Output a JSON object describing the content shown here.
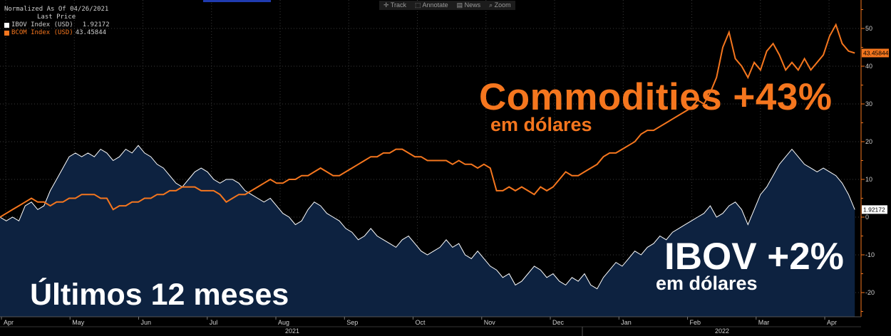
{
  "legend": {
    "header1": "Normalized As Of 04/26/2021",
    "header2": "Last Price",
    "items": [
      {
        "name": "IBOV Index (USD)",
        "value": "1.92172",
        "color": "#ffffff"
      },
      {
        "name": "BCOM Index (USD)",
        "value": "43.45844",
        "color": "#f5761e"
      }
    ]
  },
  "toolbar": {
    "track": "✛ Track",
    "annotate": "⬚ Annotate",
    "news": "▤ News",
    "zoom": "⌕ Zoom"
  },
  "overlay": {
    "commodities": "Commodities +43%",
    "commodities_sub": "em dólares",
    "ibov": "IBOV +2%",
    "ibov_sub": "em dólares",
    "period": "Últimos 12 meses"
  },
  "chart_data": {
    "type": "line",
    "title": "",
    "xlabel": "",
    "ylabel": "",
    "ylim": [
      -27,
      57
    ],
    "yticks": [
      -20,
      -10,
      0,
      10,
      20,
      30,
      40,
      50
    ],
    "grid": true,
    "month_labels": [
      "Apr",
      "May",
      "Jun",
      "Jul",
      "Aug",
      "Sep",
      "Oct",
      "Nov",
      "Dec",
      "Jan",
      "Feb",
      "Mar",
      "Apr"
    ],
    "year_labels": [
      "2021",
      "2022"
    ],
    "last_value_labels": [
      "43.45844",
      "1.92172"
    ],
    "series": [
      {
        "name": "BCOM Index (USD)",
        "color": "#f5761e",
        "style": "line",
        "points": [
          [
            0,
            0
          ],
          [
            4,
            1
          ],
          [
            8,
            2
          ],
          [
            12,
            3
          ],
          [
            16,
            4
          ],
          [
            20,
            5
          ],
          [
            24,
            4
          ],
          [
            28,
            4
          ],
          [
            32,
            3
          ],
          [
            36,
            4
          ],
          [
            40,
            4
          ],
          [
            44,
            5
          ],
          [
            48,
            5
          ],
          [
            52,
            6
          ],
          [
            56,
            6
          ],
          [
            60,
            6
          ],
          [
            64,
            5
          ],
          [
            68,
            5
          ],
          [
            72,
            2
          ],
          [
            76,
            3
          ],
          [
            80,
            3
          ],
          [
            84,
            4
          ],
          [
            88,
            4
          ],
          [
            92,
            5
          ],
          [
            96,
            5
          ],
          [
            100,
            6
          ],
          [
            104,
            6
          ],
          [
            108,
            7
          ],
          [
            112,
            7
          ],
          [
            116,
            8
          ],
          [
            120,
            8
          ],
          [
            124,
            8
          ],
          [
            128,
            7
          ],
          [
            132,
            7
          ],
          [
            136,
            7
          ],
          [
            140,
            6
          ],
          [
            144,
            4
          ],
          [
            148,
            5
          ],
          [
            152,
            6
          ],
          [
            156,
            6
          ],
          [
            160,
            7
          ],
          [
            164,
            8
          ],
          [
            168,
            9
          ],
          [
            172,
            10
          ],
          [
            176,
            9
          ],
          [
            180,
            9
          ],
          [
            184,
            10
          ],
          [
            188,
            10
          ],
          [
            192,
            11
          ],
          [
            196,
            11
          ],
          [
            200,
            12
          ],
          [
            204,
            13
          ],
          [
            208,
            12
          ],
          [
            212,
            11
          ],
          [
            216,
            11
          ],
          [
            220,
            12
          ],
          [
            224,
            13
          ],
          [
            228,
            14
          ],
          [
            232,
            15
          ],
          [
            236,
            16
          ],
          [
            240,
            16
          ],
          [
            244,
            17
          ],
          [
            248,
            17
          ],
          [
            252,
            18
          ],
          [
            256,
            18
          ],
          [
            260,
            17
          ],
          [
            264,
            16
          ],
          [
            268,
            16
          ],
          [
            272,
            15
          ],
          [
            276,
            15
          ],
          [
            280,
            15
          ],
          [
            284,
            15
          ],
          [
            288,
            14
          ],
          [
            292,
            15
          ],
          [
            296,
            14
          ],
          [
            300,
            14
          ],
          [
            304,
            13
          ],
          [
            308,
            14
          ],
          [
            312,
            13
          ],
          [
            316,
            7
          ],
          [
            320,
            7
          ],
          [
            324,
            8
          ],
          [
            328,
            7
          ],
          [
            332,
            8
          ],
          [
            336,
            7
          ],
          [
            340,
            6
          ],
          [
            344,
            8
          ],
          [
            348,
            7
          ],
          [
            352,
            8
          ],
          [
            356,
            10
          ],
          [
            360,
            12
          ],
          [
            364,
            11
          ],
          [
            368,
            11
          ],
          [
            372,
            12
          ],
          [
            376,
            13
          ],
          [
            380,
            14
          ],
          [
            384,
            16
          ],
          [
            388,
            17
          ],
          [
            392,
            17
          ],
          [
            396,
            18
          ],
          [
            400,
            19
          ],
          [
            404,
            20
          ],
          [
            408,
            22
          ],
          [
            412,
            23
          ],
          [
            416,
            23
          ],
          [
            420,
            24
          ],
          [
            424,
            25
          ],
          [
            428,
            26
          ],
          [
            432,
            27
          ],
          [
            436,
            28
          ],
          [
            440,
            29
          ],
          [
            444,
            31
          ],
          [
            448,
            30
          ],
          [
            452,
            33
          ],
          [
            456,
            37
          ],
          [
            460,
            45
          ],
          [
            464,
            49
          ],
          [
            468,
            42
          ],
          [
            472,
            40
          ],
          [
            476,
            37
          ],
          [
            480,
            41
          ],
          [
            484,
            39
          ],
          [
            488,
            44
          ],
          [
            492,
            46
          ],
          [
            496,
            43
          ],
          [
            500,
            39
          ],
          [
            504,
            41
          ],
          [
            508,
            39
          ],
          [
            512,
            42
          ],
          [
            516,
            39
          ],
          [
            520,
            41
          ],
          [
            524,
            43
          ],
          [
            528,
            48
          ],
          [
            532,
            51
          ],
          [
            536,
            46
          ],
          [
            540,
            44
          ],
          [
            544,
            43.5
          ]
        ]
      },
      {
        "name": "IBOV Index (USD)",
        "color": "#ffffff",
        "style": "area",
        "points": [
          [
            0,
            0
          ],
          [
            4,
            -1
          ],
          [
            8,
            0
          ],
          [
            12,
            -1
          ],
          [
            16,
            3
          ],
          [
            20,
            4
          ],
          [
            24,
            2
          ],
          [
            28,
            3
          ],
          [
            32,
            7
          ],
          [
            36,
            10
          ],
          [
            40,
            13
          ],
          [
            44,
            16
          ],
          [
            48,
            17
          ],
          [
            52,
            16
          ],
          [
            56,
            17
          ],
          [
            60,
            16
          ],
          [
            64,
            18
          ],
          [
            68,
            17
          ],
          [
            72,
            15
          ],
          [
            76,
            16
          ],
          [
            80,
            18
          ],
          [
            84,
            17
          ],
          [
            88,
            19
          ],
          [
            92,
            17
          ],
          [
            96,
            16
          ],
          [
            100,
            14
          ],
          [
            104,
            13
          ],
          [
            108,
            11
          ],
          [
            112,
            9
          ],
          [
            116,
            8
          ],
          [
            120,
            10
          ],
          [
            124,
            12
          ],
          [
            128,
            13
          ],
          [
            132,
            12
          ],
          [
            136,
            10
          ],
          [
            140,
            9
          ],
          [
            144,
            10
          ],
          [
            148,
            10
          ],
          [
            152,
            9
          ],
          [
            156,
            7
          ],
          [
            160,
            6
          ],
          [
            164,
            5
          ],
          [
            168,
            4
          ],
          [
            172,
            5
          ],
          [
            176,
            3
          ],
          [
            180,
            1
          ],
          [
            184,
            0
          ],
          [
            188,
            -2
          ],
          [
            192,
            -1
          ],
          [
            196,
            2
          ],
          [
            200,
            4
          ],
          [
            204,
            3
          ],
          [
            208,
            1
          ],
          [
            212,
            0
          ],
          [
            216,
            -1
          ],
          [
            220,
            -3
          ],
          [
            224,
            -4
          ],
          [
            228,
            -6
          ],
          [
            232,
            -5
          ],
          [
            236,
            -3
          ],
          [
            240,
            -5
          ],
          [
            244,
            -6
          ],
          [
            248,
            -7
          ],
          [
            252,
            -8
          ],
          [
            256,
            -6
          ],
          [
            260,
            -5
          ],
          [
            264,
            -7
          ],
          [
            268,
            -9
          ],
          [
            272,
            -10
          ],
          [
            276,
            -9
          ],
          [
            280,
            -8
          ],
          [
            284,
            -6
          ],
          [
            288,
            -8
          ],
          [
            292,
            -7
          ],
          [
            296,
            -10
          ],
          [
            300,
            -11
          ],
          [
            304,
            -9
          ],
          [
            308,
            -11
          ],
          [
            312,
            -13
          ],
          [
            316,
            -14
          ],
          [
            320,
            -16
          ],
          [
            324,
            -15
          ],
          [
            328,
            -18
          ],
          [
            332,
            -17
          ],
          [
            336,
            -15
          ],
          [
            340,
            -13
          ],
          [
            344,
            -14
          ],
          [
            348,
            -16
          ],
          [
            352,
            -15
          ],
          [
            356,
            -17
          ],
          [
            360,
            -18
          ],
          [
            364,
            -16
          ],
          [
            368,
            -17
          ],
          [
            372,
            -15
          ],
          [
            376,
            -18
          ],
          [
            380,
            -19
          ],
          [
            384,
            -16
          ],
          [
            388,
            -14
          ],
          [
            392,
            -12
          ],
          [
            396,
            -13
          ],
          [
            400,
            -11
          ],
          [
            404,
            -9
          ],
          [
            408,
            -10
          ],
          [
            412,
            -8
          ],
          [
            416,
            -7
          ],
          [
            420,
            -5
          ],
          [
            424,
            -6
          ],
          [
            428,
            -4
          ],
          [
            432,
            -3
          ],
          [
            436,
            -2
          ],
          [
            440,
            -1
          ],
          [
            444,
            0
          ],
          [
            448,
            1
          ],
          [
            452,
            3
          ],
          [
            456,
            0
          ],
          [
            460,
            1
          ],
          [
            464,
            3
          ],
          [
            468,
            4
          ],
          [
            472,
            2
          ],
          [
            476,
            -2
          ],
          [
            480,
            2
          ],
          [
            484,
            6
          ],
          [
            488,
            8
          ],
          [
            492,
            11
          ],
          [
            496,
            14
          ],
          [
            500,
            16
          ],
          [
            504,
            18
          ],
          [
            508,
            16
          ],
          [
            512,
            14
          ],
          [
            516,
            13
          ],
          [
            520,
            12
          ],
          [
            524,
            13
          ],
          [
            528,
            12
          ],
          [
            532,
            11
          ],
          [
            536,
            9
          ],
          [
            540,
            6
          ],
          [
            544,
            2
          ]
        ]
      }
    ]
  }
}
